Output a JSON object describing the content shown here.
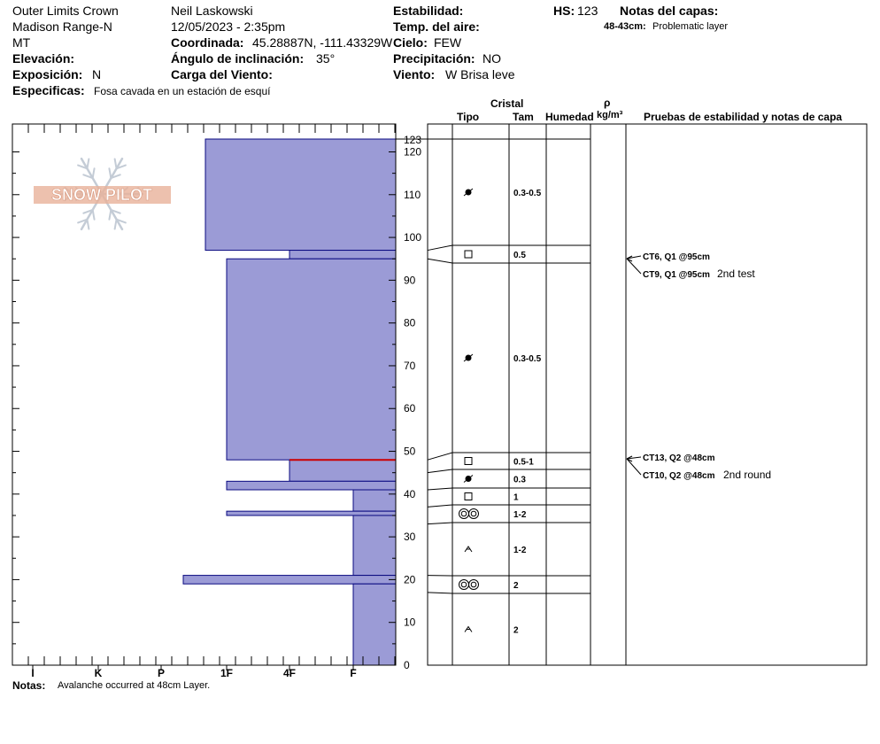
{
  "header": {
    "location": "Outer Limits Crown",
    "range": "Madison Range-N",
    "state": "MT",
    "elevation_label": "Elevación:",
    "aspect_label": "Exposición:",
    "aspect_value": "N",
    "specifics_label": "Especificas:",
    "specifics_value": "Fosa cavada en un estación de esquí",
    "observer": "Neil Laskowski",
    "datetime": "12/05/2023 - 2:35pm",
    "coord_label": "Coordinada:",
    "coord_value": "45.28887N, -111.43329W",
    "slope_label": "Ángulo de inclinación:",
    "slope_value": "35°",
    "wind_load_label": "Carga del Viento:",
    "stability_label": "Estabilidad:",
    "air_temp_label": "Temp. del aire:",
    "sky_label": "Cielo:",
    "sky_value": "FEW",
    "precip_label": "Precipitación:",
    "precip_value": "NO",
    "wind_label": "Viento:",
    "wind_value": "W Brisa leve",
    "hs_label": "HS:",
    "hs_value": "123",
    "layer_notes_label": "Notas del capas:",
    "layer_note_range": "48-43cm:",
    "layer_note_text": "Problematic layer",
    "logo_text": "SNOW PILOT"
  },
  "notes": {
    "label": "Notas:",
    "text": "Avalanche occurred at 48cm Layer."
  },
  "table_headers": {
    "crystal": "Cristal",
    "type": "Tipo",
    "size": "Tam",
    "moisture": "Humedad",
    "rho": "ρ",
    "density_unit": "kg/m³",
    "tests": "Pruebas de estabilidad y notas de capa"
  },
  "chart_data": {
    "type": "snow_profile",
    "y_axis": {
      "min": 0,
      "max": 123,
      "ticks": [
        0,
        10,
        20,
        30,
        40,
        50,
        60,
        70,
        80,
        90,
        100,
        110,
        120
      ],
      "top_label": "123"
    },
    "hardness_axis": [
      "I",
      "K",
      "P",
      "1F",
      "4F",
      "F"
    ],
    "hardness_bars": [
      {
        "top": 123,
        "bottom": 97,
        "hardness": "P+"
      },
      {
        "top": 97,
        "bottom": 95,
        "hardness": "4F"
      },
      {
        "top": 95,
        "bottom": 48,
        "hardness": "1F"
      },
      {
        "top": 48,
        "bottom": 43,
        "hardness": "4F"
      },
      {
        "top": 43,
        "bottom": 41,
        "hardness": "1F"
      },
      {
        "top": 41,
        "bottom": 36,
        "hardness": "F"
      },
      {
        "top": 36,
        "bottom": 35,
        "hardness": "1F"
      },
      {
        "top": 35,
        "bottom": 21,
        "hardness": "F"
      },
      {
        "top": 21,
        "bottom": 19,
        "hardness": "P-"
      },
      {
        "top": 19,
        "bottom": 0,
        "hardness": "F"
      }
    ],
    "critical_layer_depth": 48,
    "layers": [
      {
        "top": 123,
        "bottom": 97,
        "crystal": "rounds-faceting",
        "size": "0.3-0.5"
      },
      {
        "top": 97,
        "bottom": 95,
        "crystal": "faceted",
        "size": "0.5"
      },
      {
        "top": 95,
        "bottom": 48,
        "crystal": "rounds-faceting",
        "size": "0.3-0.5"
      },
      {
        "top": 48,
        "bottom": 45,
        "crystal": "faceted",
        "size": "0.5-1"
      },
      {
        "top": 45,
        "bottom": 41,
        "crystal": "rounds-faceting",
        "size": "0.3"
      },
      {
        "top": 41,
        "bottom": 37,
        "crystal": "faceted",
        "size": "1"
      },
      {
        "top": 37,
        "bottom": 33,
        "crystal": "melt-forms",
        "size": "1-2"
      },
      {
        "top": 33,
        "bottom": 21,
        "crystal": "depth-hoar",
        "size": "1-2"
      },
      {
        "top": 21,
        "bottom": 17,
        "crystal": "melt-forms",
        "size": "2"
      },
      {
        "top": 17,
        "bottom": 0,
        "crystal": "depth-hoar",
        "size": "2"
      }
    ],
    "tests": [
      {
        "depth": 95,
        "label": "CT6, Q1 @95cm",
        "note": ""
      },
      {
        "depth": 95,
        "label": "CT9, Q1 @95cm",
        "note": "2nd test"
      },
      {
        "depth": 48,
        "label": "CT13, Q2 @48cm",
        "note": ""
      },
      {
        "depth": 48,
        "label": "CT10, Q2 @48cm",
        "note": "2nd round"
      }
    ],
    "colors": {
      "fill": "#9b9bd6",
      "stroke": "#0a0a80",
      "critical": "#cc0000",
      "logo": "#e8b29a",
      "flake": "#c4ccd6"
    }
  }
}
